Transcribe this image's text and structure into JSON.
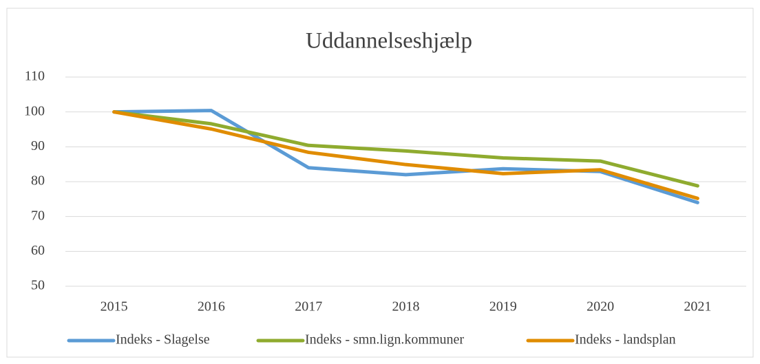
{
  "chart_data": {
    "type": "line",
    "title": "Uddannelseshjælp",
    "categories": [
      "2015",
      "2016",
      "2017",
      "2018",
      "2019",
      "2020",
      "2021"
    ],
    "series": [
      {
        "name": "Indeks - Slagelse",
        "color": "#5b9bd5",
        "values": [
          100,
          100.4,
          84,
          82,
          83.7,
          82.9,
          74
        ]
      },
      {
        "name": "Indeks - smn.lign.kommuner",
        "color": "#8fab2f",
        "values": [
          100,
          96.6,
          90.4,
          88.8,
          86.8,
          85.9,
          78.8
        ]
      },
      {
        "name": "Indeks - landsplan",
        "color": "#e08c00",
        "values": [
          100,
          95.1,
          88.4,
          84.9,
          82.3,
          83.4,
          75.2
        ]
      }
    ],
    "ylim": [
      50,
      110
    ],
    "yticks": [
      50,
      60,
      70,
      80,
      90,
      100,
      110
    ],
    "grid": true,
    "legend": "bottom"
  }
}
